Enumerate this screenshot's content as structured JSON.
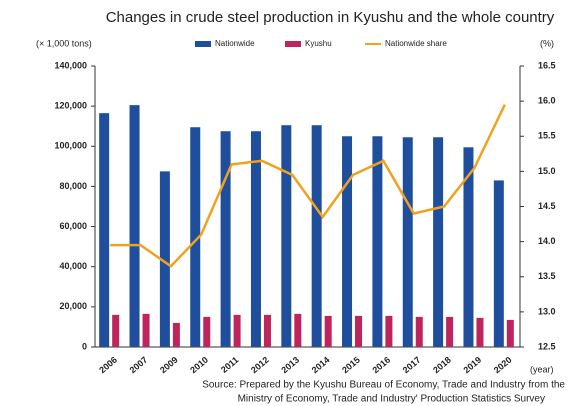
{
  "chart_data": {
    "type": "bar_line",
    "title": "Changes in crude steel production in Kyushu and the whole country",
    "y_unit": "(× 1,000 tons)",
    "y2_unit": "(%)",
    "x_unit": "(year)",
    "source": [
      "Source: Prepared by the Kyushu Bureau of Economy, Trade and Industry from the",
      "Ministry of Economy, Trade and Industry' Production Statistics Survey"
    ],
    "categories": [
      "2006",
      "2007",
      "2009",
      "2010",
      "2011",
      "2012",
      "2013",
      "2014",
      "2015",
      "2016",
      "2017",
      "2018",
      "2019",
      "2020"
    ],
    "series": [
      {
        "name": "Nationwide",
        "type": "bar",
        "color": "#1f4f9c",
        "values": [
          116500,
          120500,
          87500,
          109500,
          107500,
          107500,
          110500,
          110500,
          105000,
          105000,
          104500,
          104500,
          99500,
          83000
        ]
      },
      {
        "name": "Kyushu",
        "type": "bar",
        "color": "#c0245c",
        "values": [
          16000,
          16500,
          12000,
          15000,
          16000,
          16000,
          16500,
          15500,
          15500,
          15500,
          15000,
          15000,
          14500,
          13500
        ]
      },
      {
        "name": "Nationwide share",
        "type": "line",
        "axis": "y2",
        "color": "#f2a11f",
        "values": [
          13.95,
          13.95,
          13.65,
          14.1,
          15.1,
          15.15,
          14.95,
          14.35,
          14.95,
          15.15,
          14.4,
          14.5,
          15.05,
          15.95
        ]
      }
    ],
    "ylim": [
      0,
      140000
    ],
    "yticks": [
      0,
      {
        "value": 20000,
        "label": "20,000"
      },
      {
        "value": 40000,
        "label": "40,000"
      },
      {
        "value": 60000,
        "label": "60,000"
      },
      {
        "value": 80000,
        "label": "80,000"
      },
      {
        "value": 100000,
        "label": "100,000"
      },
      {
        "value": 120000,
        "label": "120,000"
      },
      {
        "value": 140000,
        "label": "140,000"
      }
    ],
    "y2lim": [
      12.5,
      16.5
    ],
    "y2ticks": [
      12.5,
      {
        "value": 13,
        "label": "13.0"
      },
      13.5,
      {
        "value": 14,
        "label": "14.0"
      },
      14.5,
      {
        "value": 15,
        "label": "15.0"
      },
      15.5,
      {
        "value": 16,
        "label": "16.0"
      },
      16.5
    ]
  }
}
